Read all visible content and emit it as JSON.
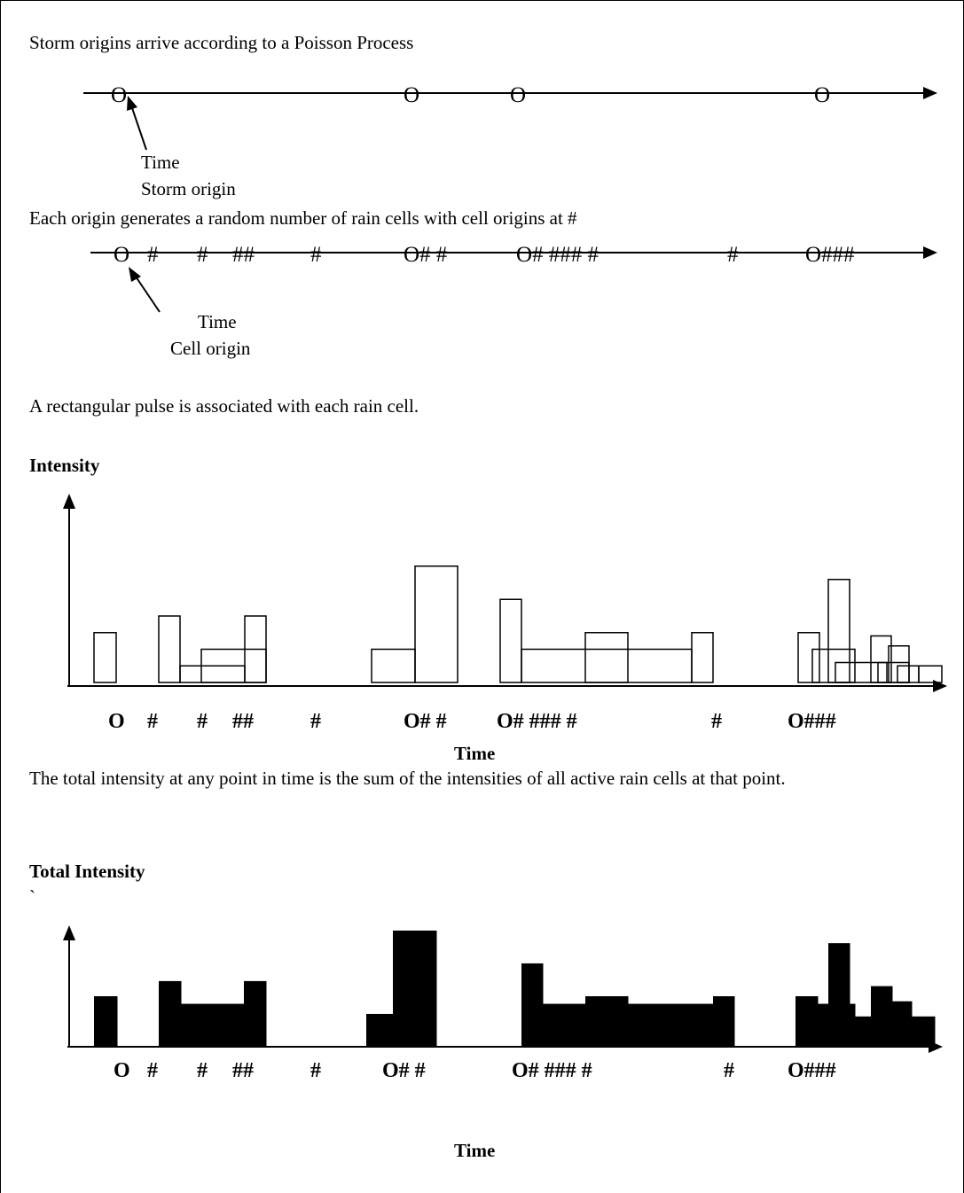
{
  "para1": "Storm origins arrive according to a Poisson Process",
  "line1_marks": [
    "O",
    "O",
    "O",
    "O"
  ],
  "line1_label_time": "Time",
  "line1_label_origin": "Storm origin",
  "para2": "Each origin generates a random number of rain cells with cell origins at #",
  "line2_marks": [
    "O",
    "#",
    "#",
    "##",
    "#",
    "O# #",
    "O# ### #",
    "#",
    "O###"
  ],
  "line2_label_time": "Time",
  "line2_label_origin": "Cell origin",
  "para3": "A rectangular pulse is associated with each rain cell.",
  "chart1_title": "Intensity",
  "chart1_marks": [
    "O",
    "#",
    "#",
    "##",
    "#",
    "O# #",
    "O# ### #",
    "#",
    "O###"
  ],
  "chart1_xlabel": "Time",
  "para4": "The total intensity at any point in time is the sum of the intensities of all active rain cells at that point.",
  "chart2_title": "Total Intensity",
  "chart2_tick": "`",
  "chart2_marks": [
    "O",
    "#",
    "#",
    "##",
    "#",
    "O# #",
    "O# ### #",
    "#",
    "O###"
  ],
  "chart2_xlabel": "Time",
  "chart_data": [
    {
      "type": "bar",
      "title": "Intensity",
      "xlabel": "Time",
      "ylabel": "",
      "pulses": [
        {
          "start": 106,
          "end": 131,
          "intensity": 1.5
        },
        {
          "start": 179,
          "end": 203,
          "intensity": 2.0
        },
        {
          "start": 203,
          "end": 276,
          "intensity": 0.5
        },
        {
          "start": 227,
          "end": 300,
          "intensity": 1.0
        },
        {
          "start": 276,
          "end": 300,
          "intensity": 2.0
        },
        {
          "start": 419,
          "end": 468,
          "intensity": 1.0
        },
        {
          "start": 468,
          "end": 516,
          "intensity": 3.5
        },
        {
          "start": 564,
          "end": 588,
          "intensity": 2.5
        },
        {
          "start": 588,
          "end": 780,
          "intensity": 1.0
        },
        {
          "start": 660,
          "end": 708,
          "intensity": 1.5
        },
        {
          "start": 780,
          "end": 804,
          "intensity": 1.5
        },
        {
          "start": 900,
          "end": 924,
          "intensity": 1.5
        },
        {
          "start": 916,
          "end": 964,
          "intensity": 1.0
        },
        {
          "start": 934,
          "end": 958,
          "intensity": 3.1
        },
        {
          "start": 942,
          "end": 1000,
          "intensity": 0.6
        },
        {
          "start": 982,
          "end": 1005,
          "intensity": 1.4
        },
        {
          "start": 990,
          "end": 1025,
          "intensity": 0.6
        },
        {
          "start": 1002,
          "end": 1025,
          "intensity": 1.1
        },
        {
          "start": 1012,
          "end": 1036,
          "intensity": 0.5
        },
        {
          "start": 1036,
          "end": 1062,
          "intensity": 0.5
        }
      ]
    },
    {
      "type": "area",
      "title": "Total Intensity",
      "xlabel": "Time",
      "ylabel": "",
      "steps": [
        {
          "start": 106,
          "end": 132,
          "value": 1.0
        },
        {
          "start": 179,
          "end": 204,
          "value": 1.3
        },
        {
          "start": 204,
          "end": 275,
          "value": 0.85
        },
        {
          "start": 275,
          "end": 300,
          "value": 1.3
        },
        {
          "start": 413,
          "end": 443,
          "value": 0.65
        },
        {
          "start": 443,
          "end": 492,
          "value": 2.3
        },
        {
          "start": 588,
          "end": 612,
          "value": 1.65
        },
        {
          "start": 612,
          "end": 660,
          "value": 0.85
        },
        {
          "start": 660,
          "end": 708,
          "value": 1.0
        },
        {
          "start": 708,
          "end": 804,
          "value": 0.85
        },
        {
          "start": 804,
          "end": 828,
          "value": 1.0
        },
        {
          "start": 897,
          "end": 922,
          "value": 1.0
        },
        {
          "start": 922,
          "end": 934,
          "value": 0.85
        },
        {
          "start": 934,
          "end": 958,
          "value": 2.05
        },
        {
          "start": 958,
          "end": 964,
          "value": 0.85
        },
        {
          "start": 964,
          "end": 982,
          "value": 0.6
        },
        {
          "start": 982,
          "end": 1006,
          "value": 1.2
        },
        {
          "start": 1006,
          "end": 1028,
          "value": 0.9
        },
        {
          "start": 1028,
          "end": 1054,
          "value": 0.6
        }
      ]
    }
  ]
}
